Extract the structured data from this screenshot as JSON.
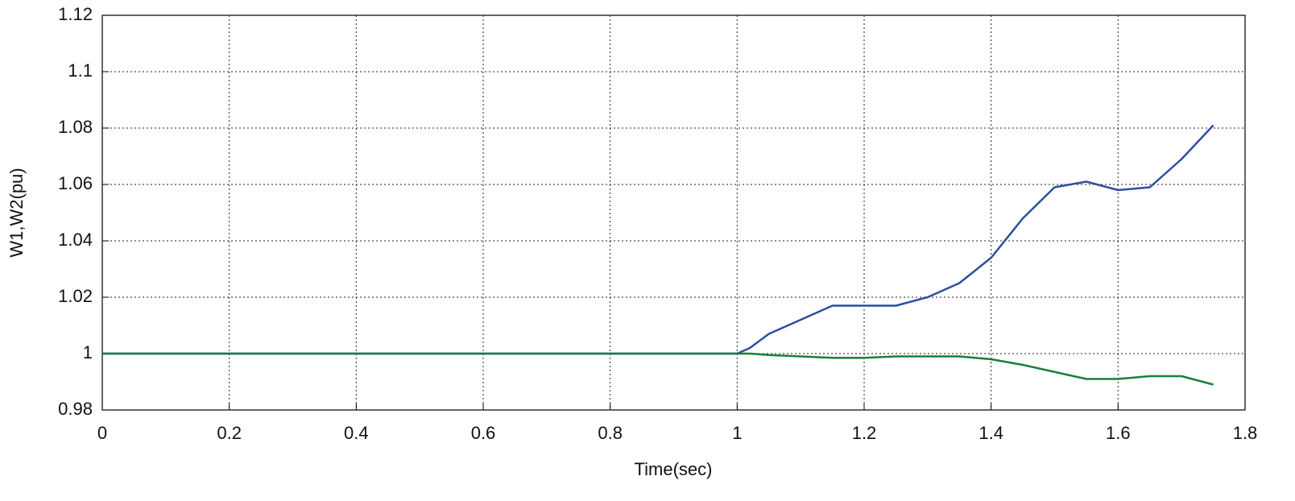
{
  "chart_data": {
    "type": "line",
    "x_label": "Time(sec)",
    "y_label": "W1,W2(pu)",
    "x": [
      0,
      1.0,
      1.02,
      1.05,
      1.1,
      1.15,
      1.2,
      1.25,
      1.3,
      1.35,
      1.4,
      1.45,
      1.5,
      1.55,
      1.6,
      1.65,
      1.7,
      1.75
    ],
    "series": [
      {
        "color": "#2e4ea0",
        "values": [
          1,
          1,
          1.002,
          1.007,
          1.012,
          1.017,
          1.017,
          1.017,
          1.02,
          1.025,
          1.034,
          1.048,
          1.059,
          1.061,
          1.058,
          1.059,
          1.069,
          1.081
        ]
      },
      {
        "color": "#1a7f3c",
        "values": [
          1,
          1,
          1,
          0.9995,
          0.999,
          0.9985,
          0.9985,
          0.999,
          0.999,
          0.999,
          0.998,
          0.996,
          0.9935,
          0.991,
          0.991,
          0.992,
          0.992,
          0.989
        ]
      }
    ],
    "xlim": [
      0,
      1.8
    ],
    "xticks": [
      0,
      0.2,
      0.4,
      0.6,
      0.8,
      1,
      1.2,
      1.4,
      1.6,
      1.8
    ],
    "ylim": [
      0.98,
      1.12
    ],
    "yticks": [
      0.98,
      1,
      1.02,
      1.04,
      1.06,
      1.08,
      1.1,
      1.12
    ],
    "grid": true
  }
}
